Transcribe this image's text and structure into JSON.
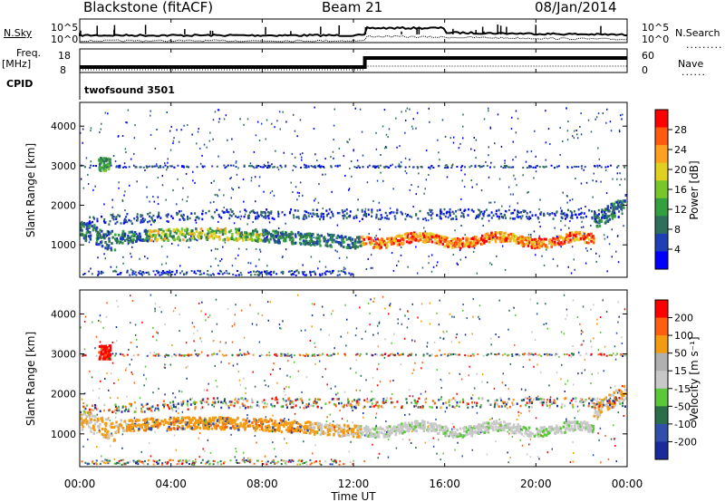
{
  "header": {
    "station": "Blackstone (fitACF)",
    "beam": "Beam 21",
    "date": "08/Jan/2014"
  },
  "top_panels": {
    "nsky_label": "N.Sky",
    "nsearch_label": "N.Search",
    "noise_ticks": [
      "10^5",
      "10^0"
    ],
    "freq_label": "Freq.",
    "freq_unit": "[MHz]",
    "freq_ticks": [
      "18",
      "8"
    ],
    "nave_label": "Nave",
    "nave_ticks": [
      "60",
      "0"
    ],
    "cpid_label": "CPID",
    "cpid_value": "twofsound 3501"
  },
  "colors": {
    "power_scale": [
      "#0000ff",
      "#1f3fb4",
      "#2e6e5a",
      "#33a040",
      "#77c72a",
      "#e0d020",
      "#ffa020",
      "#ff5a10",
      "#ff0000"
    ],
    "velocity_scale": [
      "#1a2a9a",
      "#2f4faa",
      "#2a6e4a",
      "#5ac83a",
      "#c8c8c8",
      "#b0b0b0",
      "#f39c12",
      "#ff6010",
      "#ff0000"
    ]
  },
  "chart_data": [
    {
      "type": "heatmap",
      "name": "power",
      "ylabel": "Slant Range [km]",
      "yticks": [
        1000,
        2000,
        3000,
        4000
      ],
      "ylim": [
        180,
        4600
      ],
      "xlim": [
        0,
        24
      ],
      "colorbar_label": "Power [dB]",
      "colorbar_ticks": [
        "28",
        "24",
        "20",
        "16",
        "12",
        "8",
        "4"
      ],
      "colorbar_range": [
        0,
        32
      ]
    },
    {
      "type": "heatmap",
      "name": "velocity",
      "ylabel": "Slant Range [km]",
      "yticks": [
        1000,
        2000,
        3000,
        4000
      ],
      "ylim": [
        180,
        4600
      ],
      "xlim": [
        0,
        24
      ],
      "colorbar_label": "Velocity [m s⁻¹]",
      "colorbar_ticks": [
        "200",
        "100",
        "50",
        "15",
        "-15",
        "-50",
        "-100",
        "-200"
      ]
    }
  ],
  "xaxis": {
    "ticks": [
      "00:00",
      "04:00",
      "08:00",
      "12:00",
      "16:00",
      "20:00",
      "00:00"
    ],
    "tick_hours": [
      0,
      4,
      8,
      12,
      16,
      20,
      24
    ],
    "label": "Time UT"
  }
}
